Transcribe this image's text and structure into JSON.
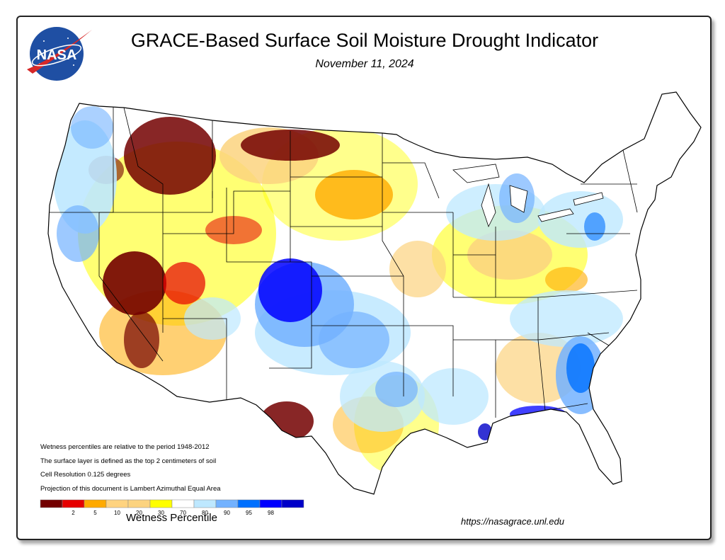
{
  "title": "GRACE-Based Surface Soil  Moisture Drought Indicator",
  "date": "November 11, 2024",
  "logo_text": "NASA",
  "notes": [
    "Wetness percentiles are relative to the period 1948-2012",
    "The surface layer is defined as the top 2 centimeters of soil",
    "Cell Resolution 0.125 degrees",
    "Projection of this document is Lambert Azimuthal Equal Area"
  ],
  "legend": {
    "title": "Wetness Percentile",
    "bins": [
      {
        "color": "#730000",
        "label": ""
      },
      {
        "color": "#e60000",
        "label": "2"
      },
      {
        "color": "#ffaa00",
        "label": "5"
      },
      {
        "color": "#ffd37f",
        "label": "10"
      },
      {
        "color": "#fcd37f",
        "label": "20"
      },
      {
        "color": "#ffff00",
        "label": "30"
      },
      {
        "color": "#ffffff",
        "label": "70"
      },
      {
        "color": "#bee8ff",
        "label": "80"
      },
      {
        "color": "#73b2ff",
        "label": "90"
      },
      {
        "color": "#0070ff",
        "label": "95"
      },
      {
        "color": "#0000ff",
        "label": "98"
      },
      {
        "color": "#0000c8",
        "label": ""
      }
    ]
  },
  "url": "https://nasagrace.unl.edu",
  "colors": {
    "dry_extreme": "#730000",
    "dry_severe": "#e60000",
    "dry_moderate": "#ffaa00",
    "dry_mild": "#fcd37f",
    "abnormal_dry": "#ffff00",
    "normal": "#ffffff",
    "wet_mild": "#bee8ff",
    "wet_moderate": "#73b2ff",
    "wet_severe": "#0070ff",
    "wet_extreme": "#0000ff"
  }
}
